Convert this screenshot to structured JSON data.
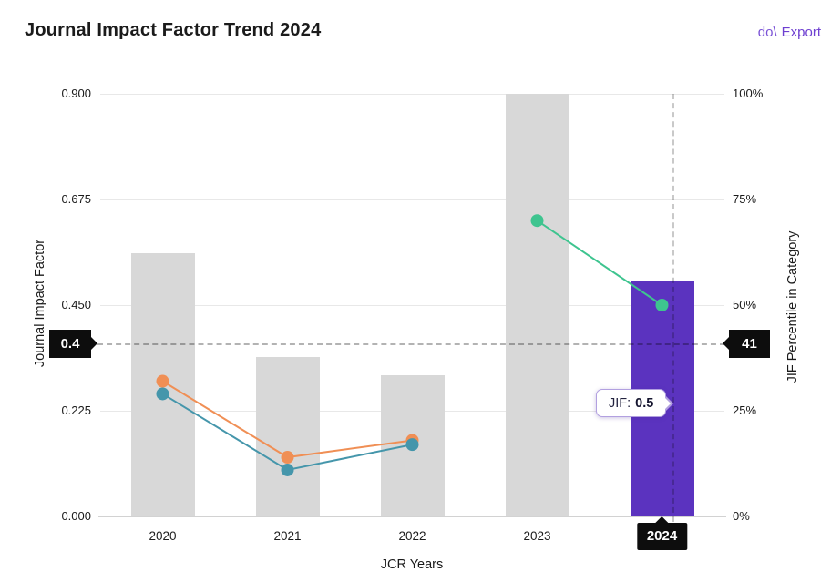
{
  "header": {
    "title": "Journal Impact Factor Trend 2024",
    "export": {
      "icon_text": "do\\",
      "label": "Export",
      "color": "#6E3FD1"
    }
  },
  "axes": {
    "left": {
      "title": "Journal Impact Factor",
      "ticks": [
        "0.000",
        "0.225",
        "0.450",
        "0.675",
        "0.900"
      ]
    },
    "right": {
      "title": "JIF Percentile in Category",
      "ticks": [
        "0%",
        "25%",
        "50%",
        "75%",
        "100%"
      ]
    },
    "x": {
      "title": "JCR Years",
      "highlighted": "2024"
    }
  },
  "reference": {
    "jif_label": "0.4",
    "percentile_label": "41",
    "percentile": 41
  },
  "tooltip": {
    "label": "JIF:",
    "value": "0.5"
  },
  "colors": {
    "bar_default": "#D8D8D8",
    "bar_highlight": "#5B33BF",
    "gridline": "#E8E8E8",
    "reference_line": "#B3B3B3",
    "marker_bg": "#0D0D0D",
    "export_text": "#6E3FD1"
  },
  "chart_data": {
    "type": "bar+line",
    "categories": [
      "2020",
      "2021",
      "2022",
      "2023",
      "2024"
    ],
    "bars": {
      "name": "Journal Impact Factor",
      "axis": "left",
      "values": [
        0.56,
        0.34,
        0.3,
        0.9,
        0.5
      ],
      "highlight_index": 4,
      "color_default": "#D8D8D8",
      "color_highlight": "#5B33BF"
    },
    "series": [
      {
        "name": "orange",
        "axis": "right",
        "color": "#F08F55",
        "values": [
          32,
          14,
          18,
          null,
          null
        ]
      },
      {
        "name": "teal",
        "axis": "right",
        "color": "#4596AB",
        "values": [
          29,
          11,
          17,
          null,
          null
        ]
      },
      {
        "name": "green",
        "axis": "right",
        "color": "#3EC48F",
        "values": [
          null,
          null,
          null,
          70,
          50
        ]
      }
    ],
    "left_axis_range": [
      0,
      0.9
    ],
    "right_axis_range": [
      0,
      100
    ],
    "reference_line": {
      "jif": 0.4,
      "percentile": 41
    },
    "grid": true,
    "legend": false
  }
}
